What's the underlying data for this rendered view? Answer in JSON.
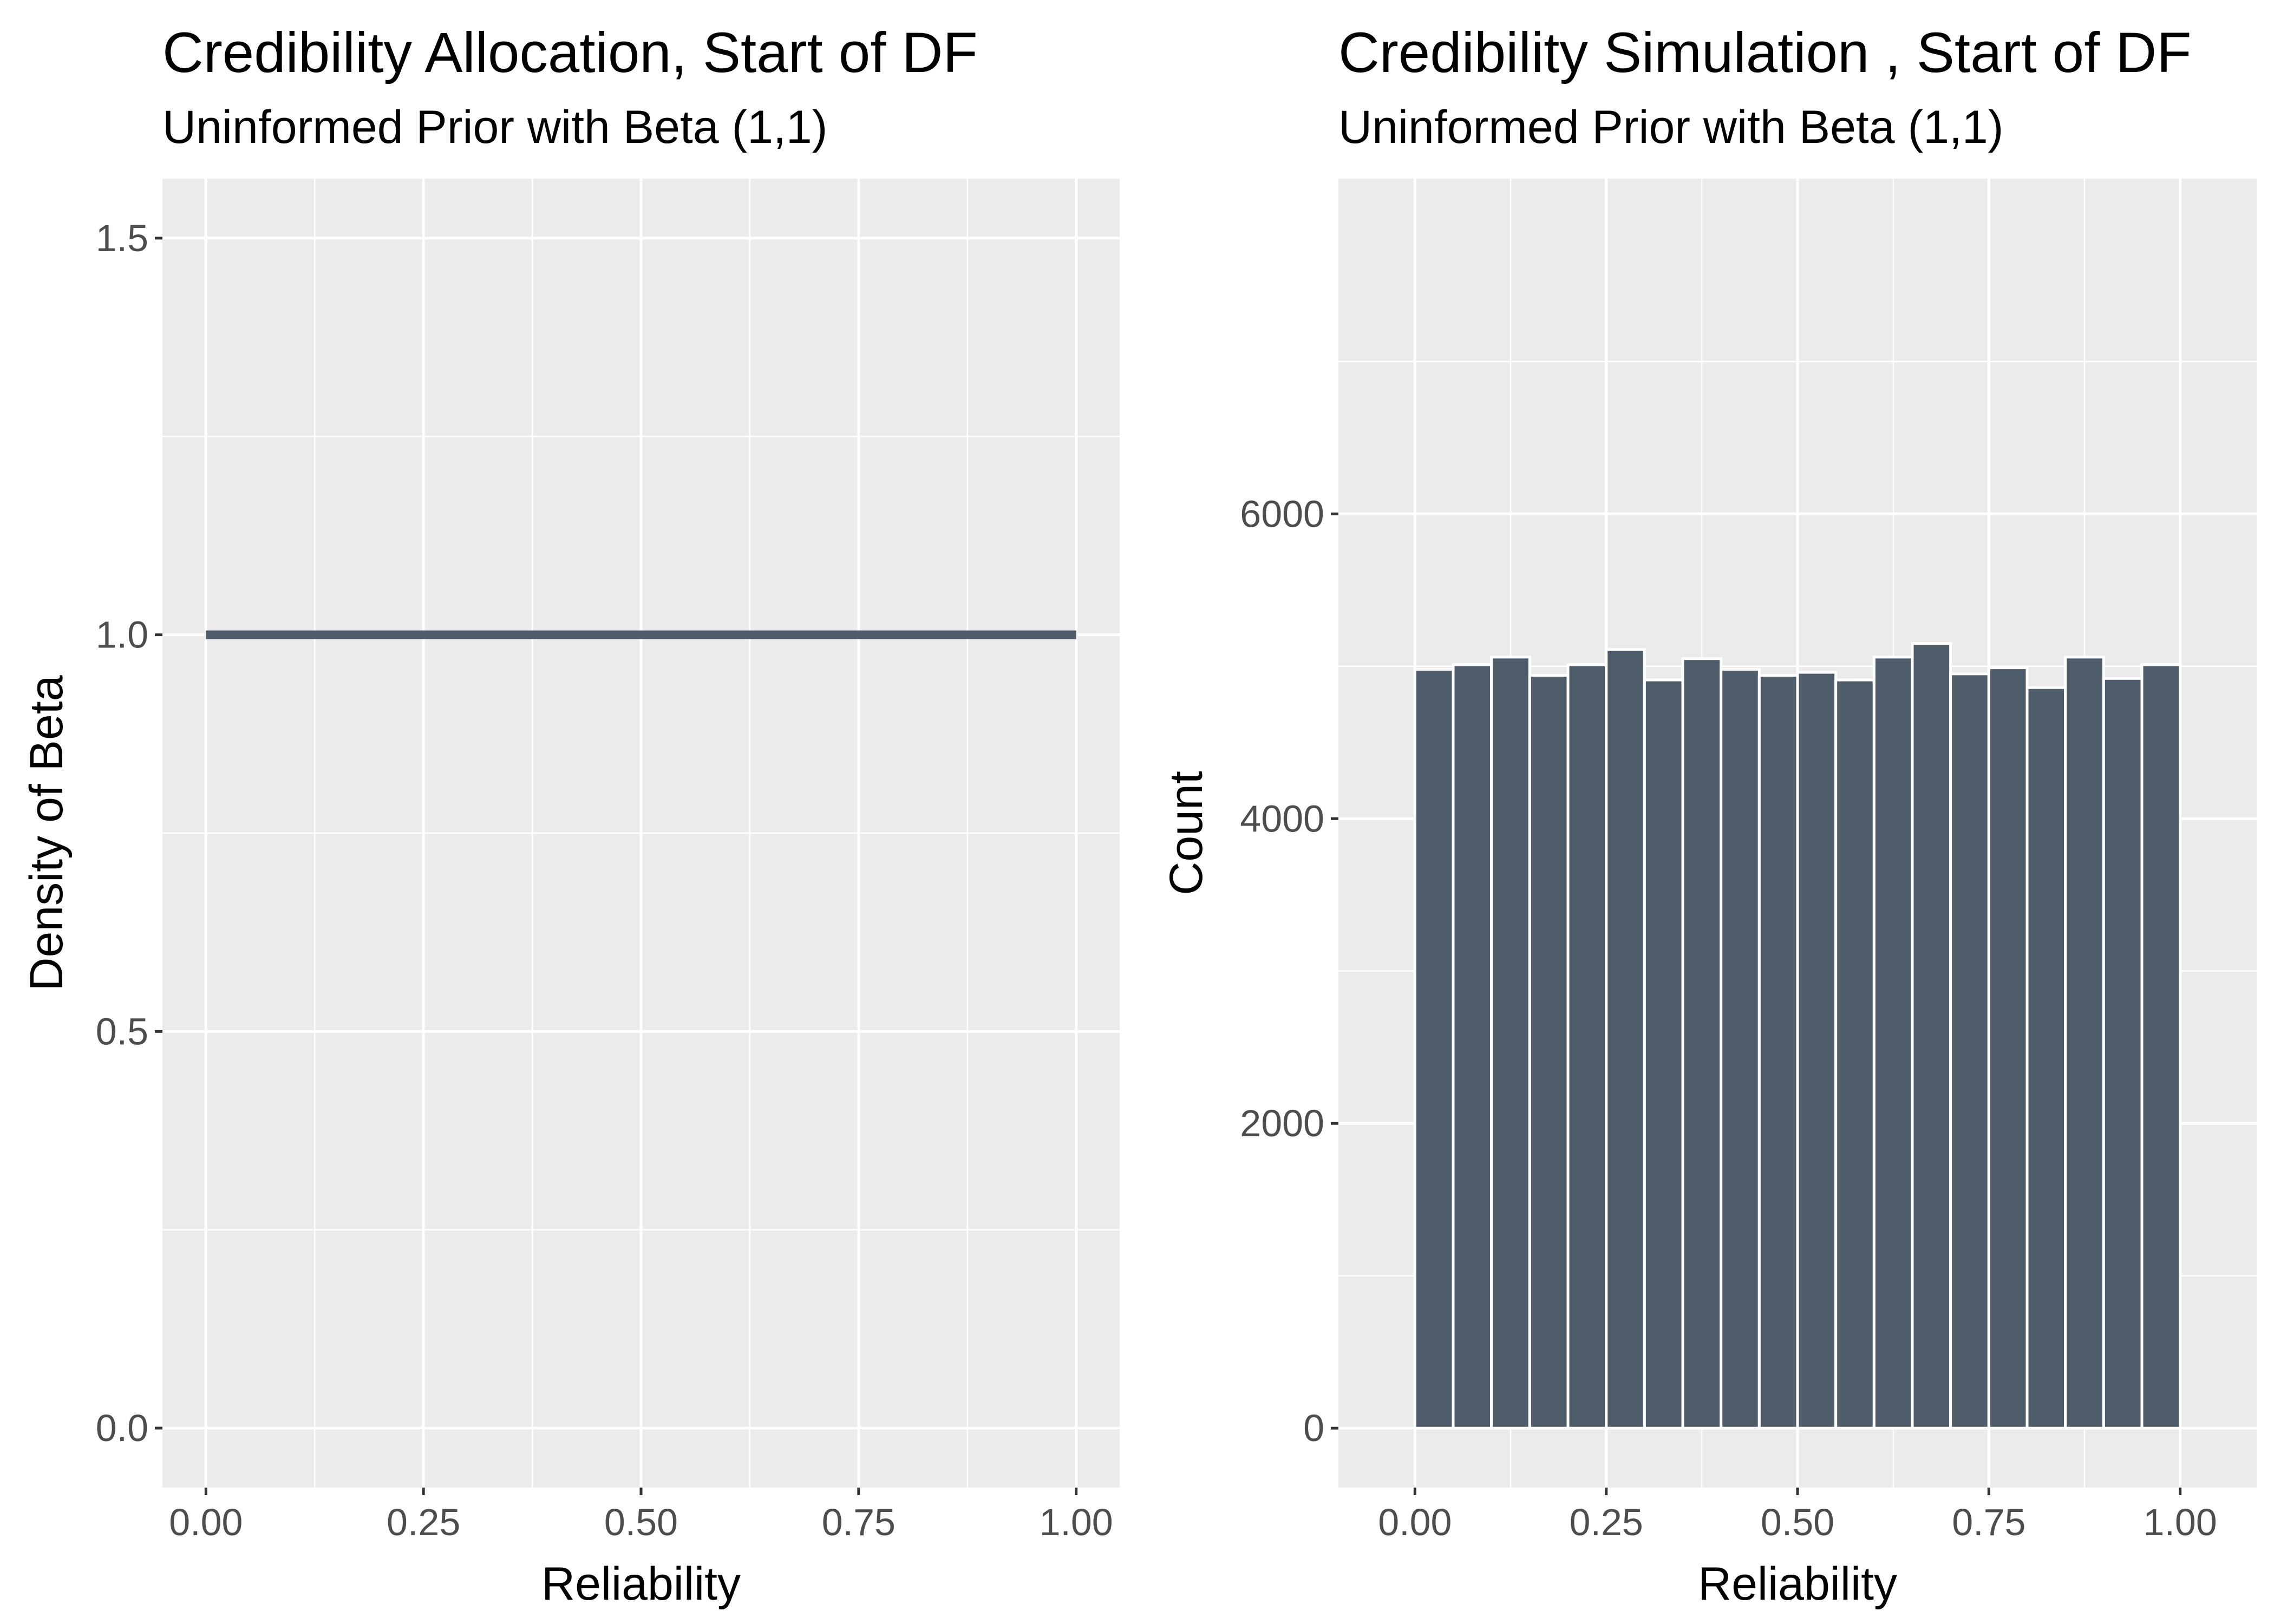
{
  "chart_data": [
    {
      "type": "line",
      "title": "Credibility Allocation, Start of DF",
      "subtitle": "Uninformed Prior with Beta (1,1)",
      "xlabel": "Reliability",
      "ylabel": "Density of Beta",
      "xlim": [
        -0.05,
        1.05
      ],
      "ylim": [
        -0.075,
        1.575
      ],
      "x_ticks": [
        0.0,
        0.25,
        0.5,
        0.75,
        1.0
      ],
      "x_tick_labels": [
        "0.00",
        "0.25",
        "0.50",
        "0.75",
        "1.00"
      ],
      "y_ticks": [
        0.0,
        0.5,
        1.0,
        1.5
      ],
      "y_tick_labels": [
        "0.0",
        "0.5",
        "1.0",
        "1.5"
      ],
      "grid": true,
      "series": [
        {
          "x": [
            0.0,
            1.0
          ],
          "y": [
            1.0,
            1.0
          ]
        }
      ],
      "line_color": "#4f5d6b"
    },
    {
      "type": "bar",
      "title": "Credibility Simulation , Start of DF",
      "subtitle": "Uninformed Prior with Beta (1,1)",
      "xlabel": "Reliability",
      "ylabel": "Count",
      "xlim": [
        -0.1,
        1.1
      ],
      "ylim": [
        -390,
        8200
      ],
      "x_ticks": [
        0.0,
        0.25,
        0.5,
        0.75,
        1.0
      ],
      "x_tick_labels": [
        "0.00",
        "0.25",
        "0.50",
        "0.75",
        "1.00"
      ],
      "y_ticks": [
        0,
        2000,
        4000,
        6000
      ],
      "y_tick_labels": [
        "0",
        "2000",
        "4000",
        "6000"
      ],
      "grid": true,
      "bin_width": 0.05,
      "bin_centers": [
        0.025,
        0.075,
        0.125,
        0.175,
        0.225,
        0.275,
        0.325,
        0.375,
        0.425,
        0.475,
        0.525,
        0.575,
        0.625,
        0.675,
        0.725,
        0.775,
        0.825,
        0.875,
        0.925,
        0.975
      ],
      "values": [
        4980,
        5010,
        5060,
        4940,
        5010,
        5110,
        4910,
        5050,
        4980,
        4940,
        4960,
        4910,
        5060,
        5150,
        4950,
        4990,
        4860,
        5060,
        4920,
        5010
      ],
      "bar_color": "#4f5d6b"
    }
  ]
}
